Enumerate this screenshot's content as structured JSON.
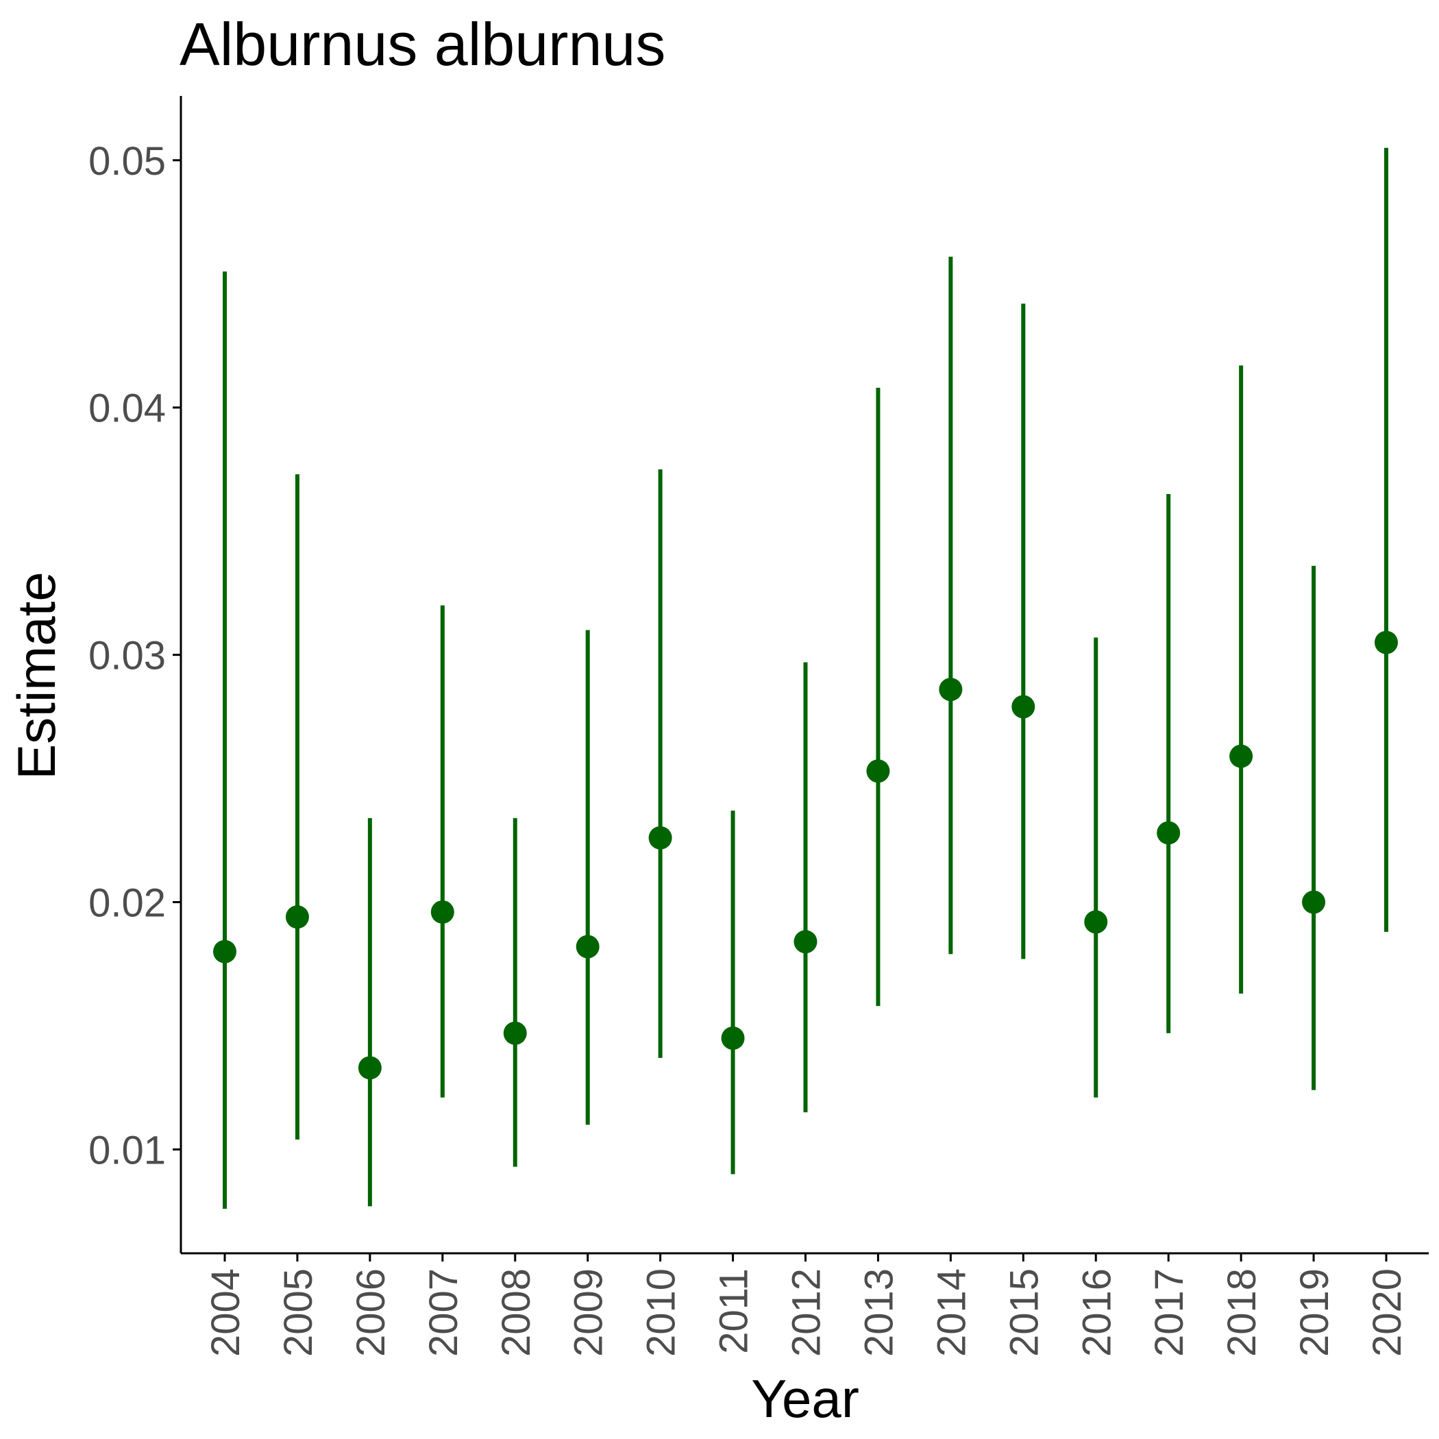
{
  "chart_data": {
    "type": "scatter",
    "subtype": "point-range",
    "title": "Alburnus alburnus",
    "xlabel": "Year",
    "ylabel": "Estimate",
    "grid": false,
    "legend": "none",
    "color": "#006400",
    "ylim": [
      0.0058,
      0.0526
    ],
    "yticks": [
      0.01,
      0.02,
      0.03,
      0.04,
      0.05
    ],
    "ytick_labels": [
      "0.01",
      "0.02",
      "0.03",
      "0.04",
      "0.05"
    ],
    "categories": [
      "2004",
      "2005",
      "2006",
      "2007",
      "2008",
      "2009",
      "2010",
      "2011",
      "2012",
      "2013",
      "2014",
      "2015",
      "2016",
      "2017",
      "2018",
      "2019",
      "2020"
    ],
    "series": [
      {
        "estimate": [
          0.018,
          0.0194,
          0.0133,
          0.0196,
          0.0147,
          0.0182,
          0.0226,
          0.0145,
          0.0184,
          0.0253,
          0.0286,
          0.0279,
          0.0192,
          0.0228,
          0.0259,
          0.02,
          0.0305
        ],
        "lower": [
          0.0076,
          0.0104,
          0.0077,
          0.0121,
          0.0093,
          0.011,
          0.0137,
          0.009,
          0.0115,
          0.0158,
          0.0179,
          0.0177,
          0.0121,
          0.0147,
          0.0163,
          0.0124,
          0.0188
        ],
        "upper": [
          0.0455,
          0.0373,
          0.0234,
          0.032,
          0.0234,
          0.031,
          0.0375,
          0.0237,
          0.0297,
          0.0408,
          0.0461,
          0.0442,
          0.0307,
          0.0365,
          0.0417,
          0.0336,
          0.0505
        ]
      }
    ]
  }
}
